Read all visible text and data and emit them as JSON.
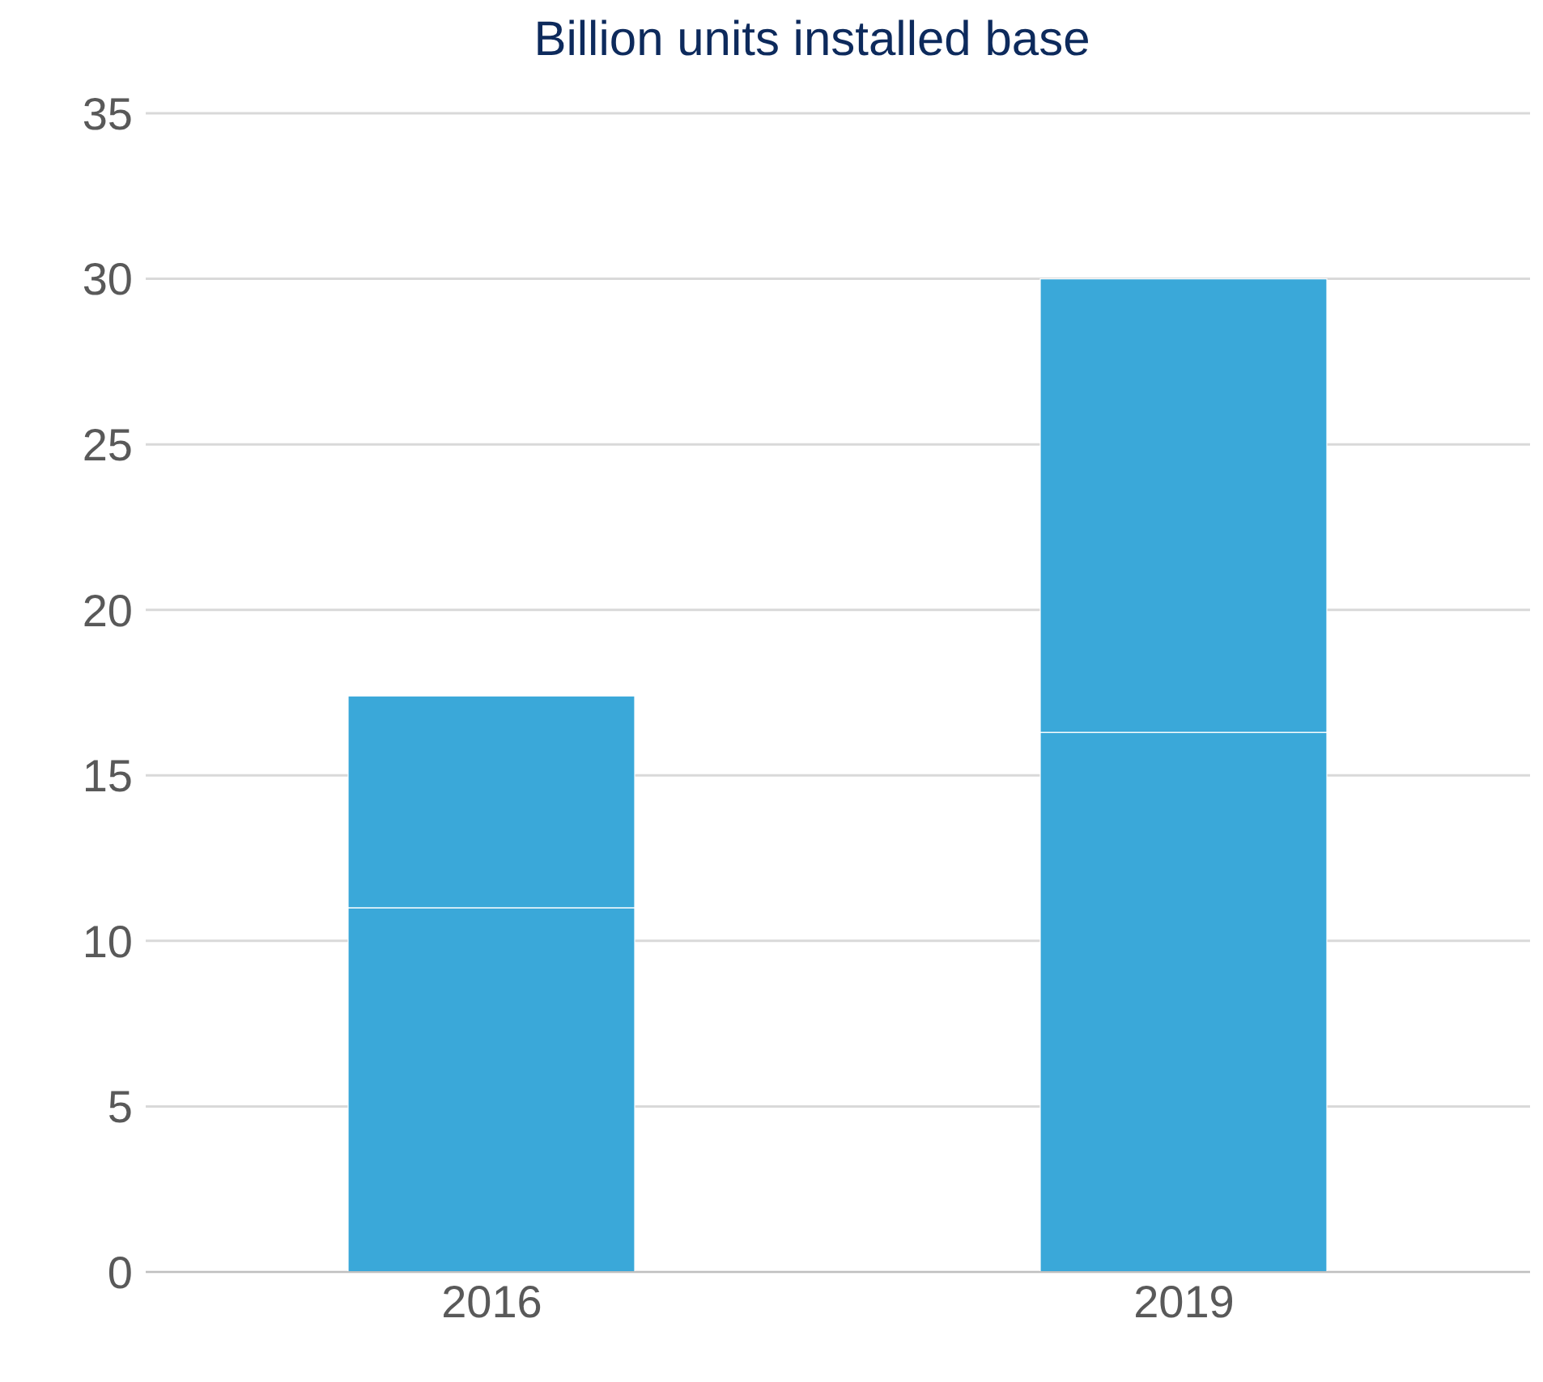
{
  "chart_data": {
    "type": "bar",
    "title": "Billion units installed base",
    "categories": [
      "2016",
      "2019"
    ],
    "stacked": true,
    "series": [
      {
        "color": "#3aa8d9",
        "values": [
          11,
          16.3
        ]
      },
      {
        "color": "#3aa8d9",
        "values": [
          6.4,
          13.7
        ]
      }
    ],
    "ylim": [
      0,
      35
    ],
    "yticks": [
      0,
      5,
      10,
      15,
      20,
      25,
      30,
      35
    ],
    "grid": "y"
  }
}
